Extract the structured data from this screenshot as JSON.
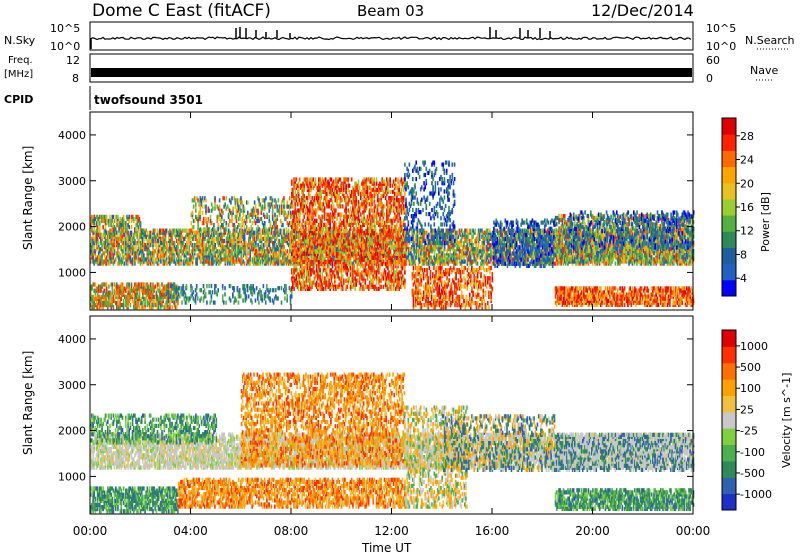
{
  "header": {
    "station": "Dome C East (fitACF)",
    "beam": "Beam 03",
    "date": "12/Dec/2014"
  },
  "top_panels": {
    "nsky_label": "N.Sky",
    "nsky_ticks": [
      "10^5",
      "10^0"
    ],
    "nsearch_label": "N.Search",
    "nsearch_ticks": [
      "10^5",
      "10^0"
    ],
    "freq_label": [
      "Freq.",
      "[MHz]"
    ],
    "freq_ticks": [
      "12",
      "8"
    ],
    "nave_label": "Nave",
    "nave_ticks": [
      "60",
      "0"
    ],
    "cpid_label": "CPID",
    "cpid_value": "twofsound 3501"
  },
  "power_panel": {
    "ylabel": "Slant Range [km]",
    "yticks": [
      "4000",
      "3000",
      "2000",
      "1000"
    ],
    "colorbar_label": "Power [dB]",
    "colorbar_ticks": [
      "28",
      "24",
      "20",
      "16",
      "12",
      "8",
      "4"
    ],
    "colors": [
      "#0000ff",
      "#2060c0",
      "#1f5fa0",
      "#2e8b57",
      "#55b040",
      "#9acd32",
      "#e8c020",
      "#ffa500",
      "#ff6a00",
      "#ff2200",
      "#dd0000"
    ]
  },
  "velocity_panel": {
    "ylabel": "Slant Range [km]",
    "yticks": [
      "4000",
      "3000",
      "2000",
      "1000"
    ],
    "colorbar_label": "Velocity [m s^-1]",
    "colorbar_ticks": [
      "1000",
      "500",
      "100",
      "25",
      "-25",
      "-100",
      "-500",
      "-1000"
    ],
    "colors": [
      "#1e2ec8",
      "#3060b0",
      "#2e8b57",
      "#4caf50",
      "#7fd040",
      "#c8c8c8",
      "#f0c040",
      "#ffa000",
      "#ff7000",
      "#ff3000",
      "#e00000"
    ]
  },
  "xaxis": {
    "label": "Time UT",
    "ticks": [
      "00:00",
      "04:00",
      "08:00",
      "12:00",
      "16:00",
      "20:00",
      "00:00"
    ]
  },
  "chart_data": [
    {
      "type": "heatmap",
      "title": "Power",
      "xlabel": "Time UT",
      "ylabel": "Slant Range [km]",
      "xlim": [
        "00:00",
        "24:00"
      ],
      "ylim": [
        180,
        4500
      ],
      "colorbar": {
        "label": "Power [dB]",
        "range": [
          0,
          30
        ],
        "ticks": [
          4,
          8,
          12,
          16,
          20,
          24,
          28
        ]
      },
      "description_bands": [
        {
          "t_start": 0,
          "t_end": 24,
          "range_start": 1150,
          "range_end": 1900,
          "level": "mixed"
        },
        {
          "t_start": 8,
          "t_end": 12.5,
          "range_start": 600,
          "range_end": 3000,
          "level": "high"
        },
        {
          "t_start": 18.5,
          "t_end": 24,
          "range_start": 300,
          "range_end": 600,
          "level": "high"
        }
      ]
    },
    {
      "type": "heatmap",
      "title": "Velocity",
      "xlabel": "Time UT",
      "ylabel": "Slant Range [km]",
      "xlim": [
        "00:00",
        "24:00"
      ],
      "ylim": [
        180,
        4500
      ],
      "colorbar": {
        "label": "Velocity [m s^-1]",
        "ticks": [
          1000,
          500,
          100,
          25,
          -25,
          -100,
          -500,
          -1000
        ]
      }
    }
  ]
}
